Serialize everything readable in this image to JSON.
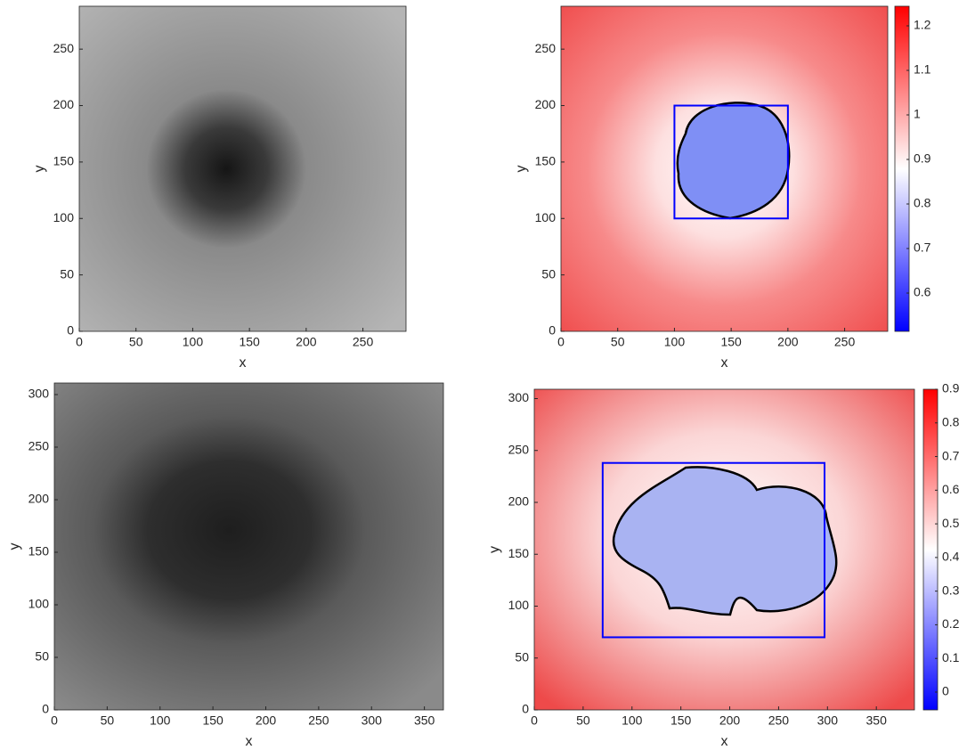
{
  "chart_data": [
    {
      "type": "image",
      "xlabel": "x",
      "ylabel": "y",
      "xlim": [
        0,
        288
      ],
      "ylim": [
        0,
        288
      ],
      "xticks": [
        0,
        50,
        100,
        150,
        200,
        250
      ],
      "yticks": [
        0,
        50,
        100,
        150,
        200,
        250
      ]
    },
    {
      "type": "image",
      "xlabel": "x",
      "ylabel": "y",
      "xlim": [
        0,
        288
      ],
      "ylim": [
        0,
        288
      ],
      "xticks": [
        0,
        50,
        100,
        150,
        200,
        250
      ],
      "yticks": [
        0,
        50,
        100,
        150,
        200,
        250
      ],
      "box": {
        "x": [
          100,
          200
        ],
        "y": [
          100,
          200
        ],
        "color": "#0000ff"
      },
      "colorbar": {
        "clim": [
          0.514,
          1.244
        ],
        "ticks": [
          0.6,
          0.7,
          0.8,
          0.9,
          1,
          1.1,
          1.2
        ],
        "colors": [
          "#0000ff",
          "#ffffff",
          "#ff0000"
        ]
      }
    },
    {
      "type": "image",
      "xlabel": "x",
      "ylabel": "y",
      "xlim": [
        0,
        368
      ],
      "ylim": [
        0,
        311
      ],
      "xticks": [
        0,
        50,
        100,
        150,
        200,
        250,
        300,
        350
      ],
      "yticks": [
        0,
        50,
        100,
        150,
        200,
        250,
        300
      ]
    },
    {
      "type": "image",
      "xlabel": "x",
      "ylabel": "y",
      "xlim": [
        0,
        389
      ],
      "ylim": [
        0,
        309
      ],
      "xticks": [
        0,
        50,
        100,
        150,
        200,
        250,
        300,
        350
      ],
      "yticks": [
        0,
        50,
        100,
        150,
        200,
        250,
        300
      ],
      "box": {
        "x": [
          70,
          297
        ],
        "y": [
          70,
          238
        ],
        "color": "#0000ff"
      },
      "colorbar": {
        "clim": [
          -0.053,
          0.9
        ],
        "ticks": [
          0,
          0.1,
          0.2,
          0.3,
          0.4,
          0.5,
          0.6,
          0.7,
          0.8,
          0.9
        ],
        "colors": [
          "#0000ff",
          "#ffffff",
          "#ff0000"
        ]
      }
    }
  ]
}
